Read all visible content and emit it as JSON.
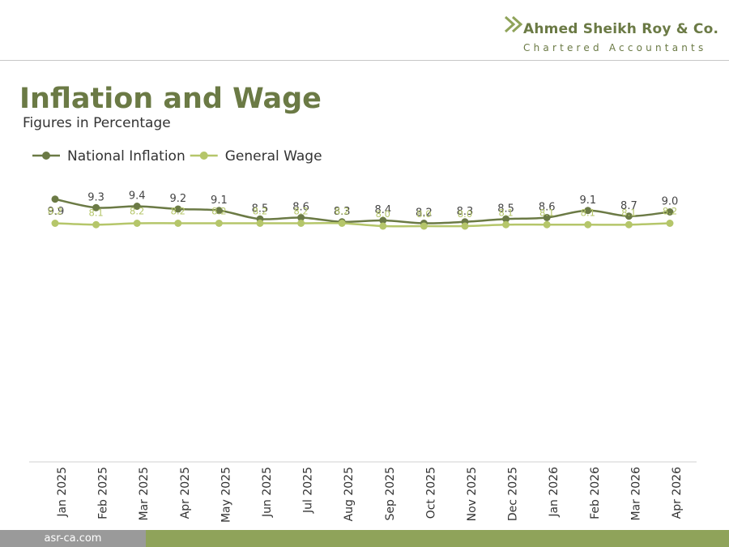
{
  "header": {
    "brand": "Ahmed Sheikh Roy & Co.",
    "tagline": "Chartered Accountants",
    "logo_icon": "double-chevron-icon"
  },
  "page": {
    "title": "Inflation and Wage",
    "subtitle": "Figures in Percentage"
  },
  "footer": {
    "website": "asr-ca.com"
  },
  "colors": {
    "inflation": "#6b7a45",
    "wage": "#b5c66a",
    "accent_green": "#8fa35a",
    "footer_gray": "#9a9a9a"
  },
  "chart_data": {
    "type": "line",
    "categories": [
      "Jan 2025",
      "Feb 2025",
      "Mar 2025",
      "Apr 2025",
      "May 2025",
      "Jun 2025",
      "Jul 2025",
      "Aug 2025",
      "Sep 2025",
      "Oct 2025",
      "Nov 2025",
      "Dec 2025",
      "Jan 2026",
      "Feb 2026",
      "Mar 2026",
      "Apr 2026"
    ],
    "series": [
      {
        "name": "National Inflation",
        "values": [
          9.9,
          9.3,
          9.4,
          9.2,
          9.1,
          8.5,
          8.6,
          8.3,
          8.4,
          8.2,
          8.3,
          8.5,
          8.6,
          9.1,
          8.7,
          9.0
        ]
      },
      {
        "name": "General Wage",
        "values": [
          8.2,
          8.1,
          8.2,
          8.2,
          8.2,
          8.2,
          8.2,
          8.2,
          8.0,
          8.0,
          8.0,
          8.1,
          8.1,
          8.1,
          8.1,
          8.2
        ]
      }
    ],
    "legend_position": "top-left",
    "grid": false
  }
}
